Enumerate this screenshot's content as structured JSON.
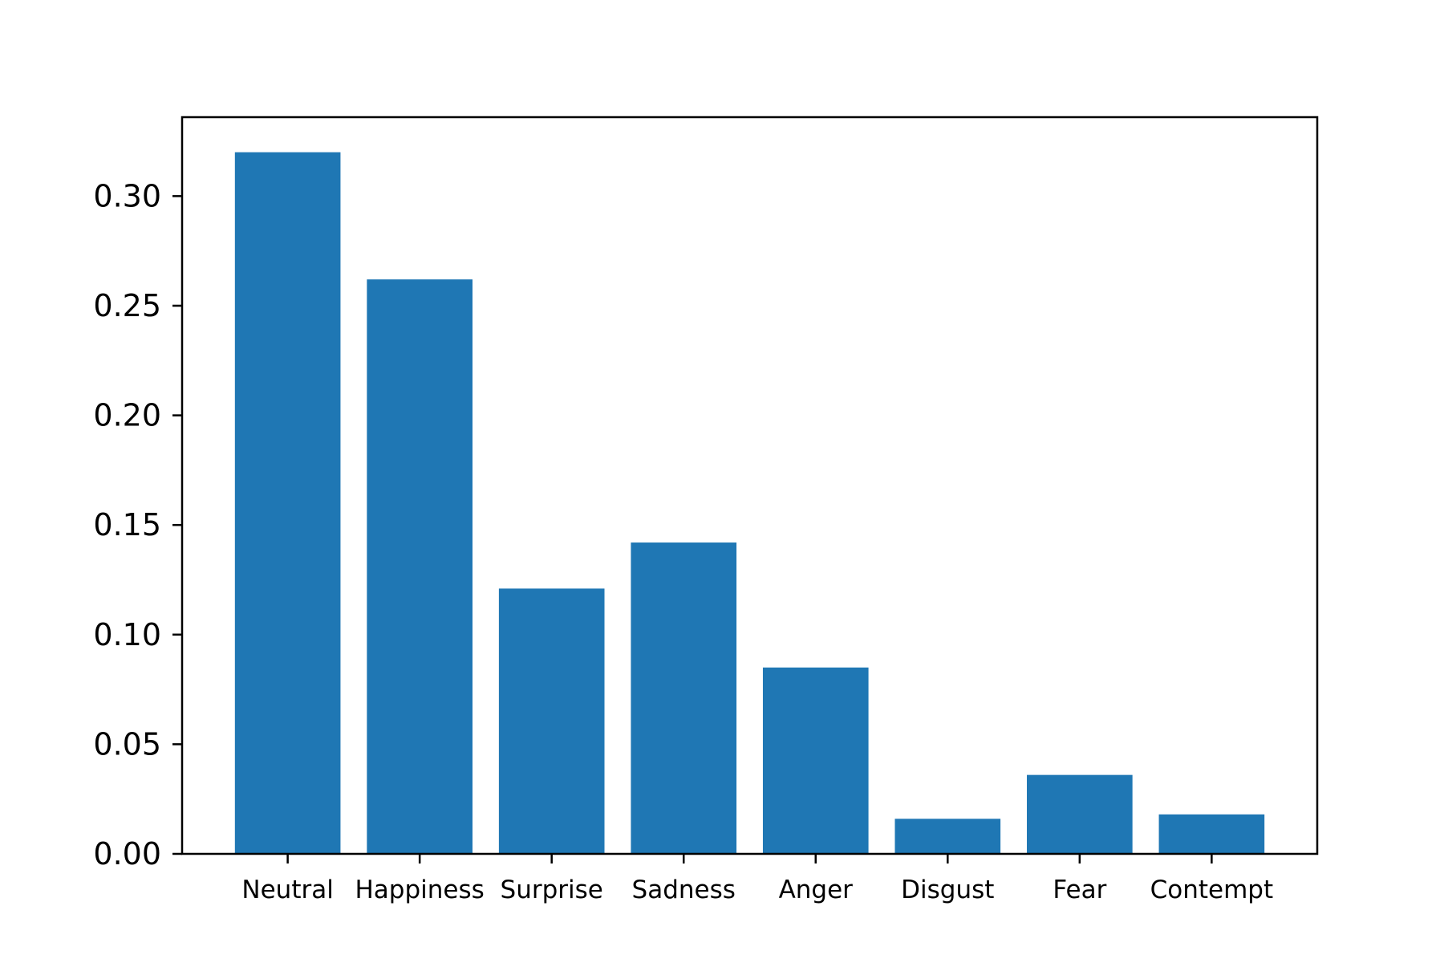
{
  "chart_data": {
    "type": "bar",
    "title": "",
    "xlabel": "",
    "ylabel": "",
    "categories": [
      "Neutral",
      "Happiness",
      "Surprise",
      "Sadness",
      "Anger",
      "Disgust",
      "Fear",
      "Contempt"
    ],
    "values": [
      0.32,
      0.262,
      0.121,
      0.142,
      0.085,
      0.016,
      0.036,
      0.018
    ],
    "ylim": [
      0,
      0.336
    ],
    "yticks": [
      "0.00",
      "0.05",
      "0.10",
      "0.15",
      "0.20",
      "0.25",
      "0.30"
    ],
    "bar_color": "#1f77b4",
    "grid": false,
    "legend": "none"
  }
}
